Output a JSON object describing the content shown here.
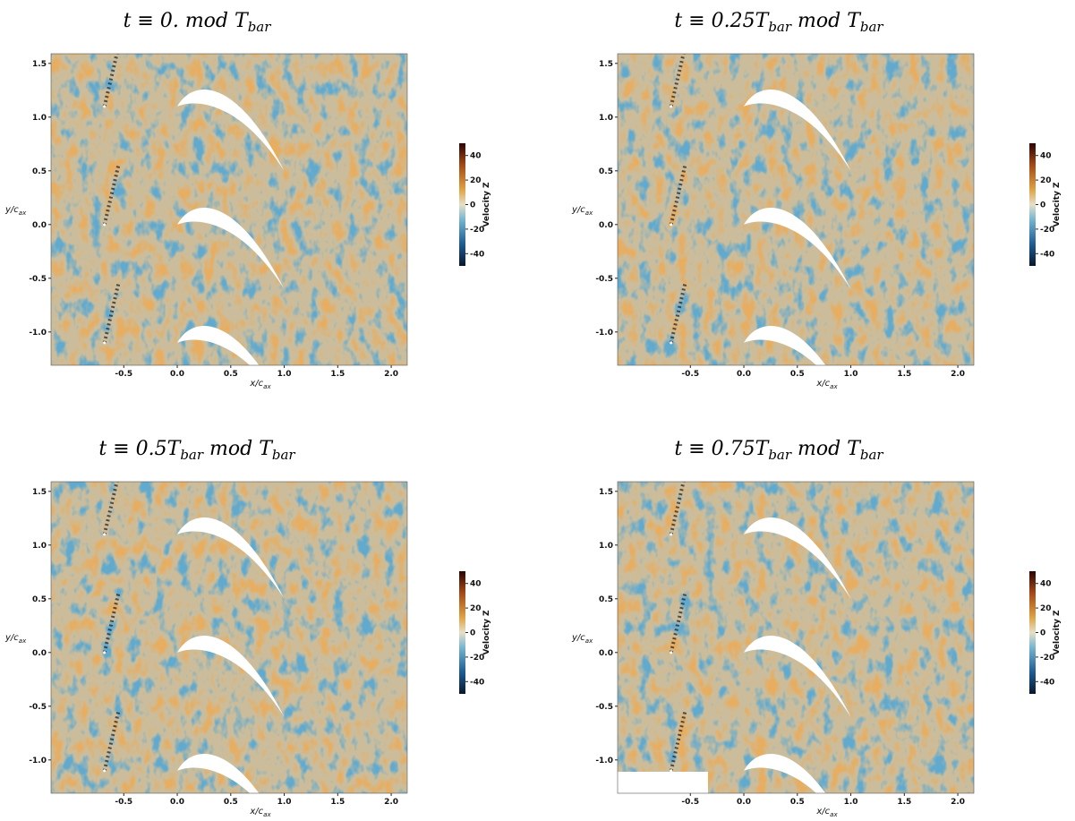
{
  "axes": {
    "xlim": [
      -1.18,
      2.15
    ],
    "ylim": [
      -1.31,
      1.59
    ],
    "xticks": [
      -0.5,
      {
        "value": 0,
        "label": "0.0"
      },
      0.5,
      {
        "value": 1,
        "label": "1.0"
      },
      1.5,
      {
        "value": 2,
        "label": "2.0"
      }
    ],
    "yticks": [
      1.5,
      {
        "value": 1,
        "label": "1.0"
      },
      0.5,
      {
        "value": 0,
        "label": "0.0"
      },
      -0.5,
      {
        "value": -1,
        "label": "-1.0"
      }
    ],
    "xlabel": [
      "x/c",
      "ax"
    ],
    "ylabel": [
      "y/c",
      "ax"
    ],
    "colorbar": {
      "label": "Velocity Z",
      "lim": [
        -50,
        50
      ],
      "ticks": [
        40,
        20,
        0,
        -20,
        -40
      ]
    }
  },
  "panels": [
    {
      "title": [
        {
          "text": "t ≡ 0.  mod T"
        },
        {
          "sub": "bar"
        }
      ]
    },
    {
      "title": [
        {
          "text": "t ≡ 0.25T"
        },
        {
          "sub": "bar"
        },
        {
          "text": "  mod T"
        },
        {
          "sub": "bar"
        }
      ]
    },
    {
      "title": [
        {
          "text": "t ≡ 0.5T"
        },
        {
          "sub": "bar"
        },
        {
          "text": "  mod T"
        },
        {
          "sub": "bar"
        }
      ]
    },
    {
      "title": [
        {
          "text": "t ≡ 0.75T"
        },
        {
          "sub": "bar"
        },
        {
          "text": "  mod T"
        },
        {
          "sub": "bar"
        }
      ]
    }
  ]
}
